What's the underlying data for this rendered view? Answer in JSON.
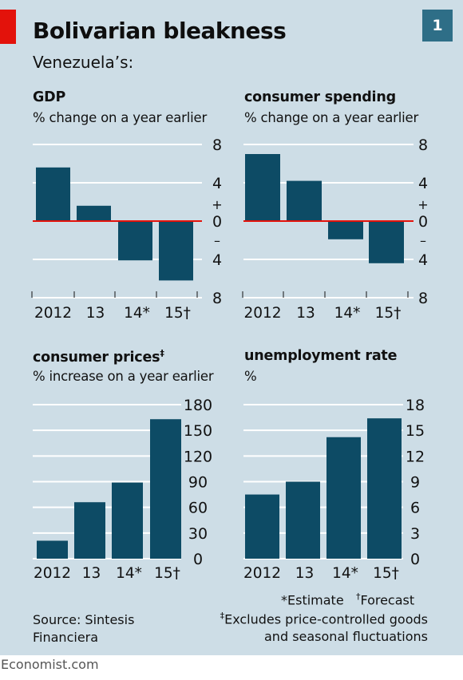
{
  "header": {
    "title": "Bolivarian bleakness",
    "badge": "1",
    "subtitle": "Venezuela’s:"
  },
  "footer": {
    "estimate": "*Estimate",
    "forecast_mark": "†",
    "forecast": "Forecast",
    "excludes_mark": "‡",
    "excludes_line1": "Excludes price-controlled goods",
    "excludes_line2": "and seasonal fluctuations",
    "source_line1": "Source: Sintesis",
    "source_line2": "Financiera"
  },
  "brand": "Economist.com",
  "colors": {
    "bar": "#0d4b65",
    "zero_line": "#e3120b",
    "grid": "#ffffff",
    "background": "#cddde6"
  },
  "chart_data": [
    {
      "type": "bar",
      "title": "GDP",
      "subtitle": "% change on a year earlier",
      "categories": [
        "2012",
        "13",
        "14*",
        "15†"
      ],
      "values": [
        5.6,
        1.6,
        -4.1,
        -6.2
      ],
      "ylim": [
        -8,
        8
      ],
      "ticks": [
        8,
        4,
        0,
        4,
        8
      ],
      "tick_values": [
        8,
        4,
        0,
        -4,
        -8
      ],
      "sign_labels": [
        "+",
        "–"
      ],
      "grid": true
    },
    {
      "type": "bar",
      "title": "consumer spending",
      "subtitle": "% change on a year earlier",
      "categories": [
        "2012",
        "13",
        "14*",
        "15†"
      ],
      "values": [
        7.0,
        4.2,
        -1.9,
        -4.4
      ],
      "ylim": [
        -8,
        8
      ],
      "ticks": [
        8,
        4,
        0,
        4,
        8
      ],
      "tick_values": [
        8,
        4,
        0,
        -4,
        -8
      ],
      "sign_labels": [
        "+",
        "–"
      ],
      "grid": true
    },
    {
      "type": "bar",
      "title": "consumer prices",
      "title_mark": "‡",
      "subtitle": "% increase on a year earlier",
      "categories": [
        "2012",
        "13",
        "14*",
        "15†"
      ],
      "values": [
        21,
        66,
        89,
        163
      ],
      "ylim": [
        0,
        180
      ],
      "ticks": [
        180,
        150,
        120,
        90,
        60,
        30,
        0
      ],
      "tick_values": [
        180,
        150,
        120,
        90,
        60,
        30,
        0
      ],
      "grid": true
    },
    {
      "type": "bar",
      "title": "unemployment rate",
      "subtitle": "%",
      "categories": [
        "2012",
        "13",
        "14*",
        "15†"
      ],
      "values": [
        7.5,
        9.0,
        14.2,
        16.4
      ],
      "ylim": [
        0,
        18
      ],
      "ticks": [
        18,
        15,
        12,
        9,
        6,
        3,
        0
      ],
      "tick_values": [
        18,
        15,
        12,
        9,
        6,
        3,
        0
      ],
      "grid": true
    }
  ]
}
